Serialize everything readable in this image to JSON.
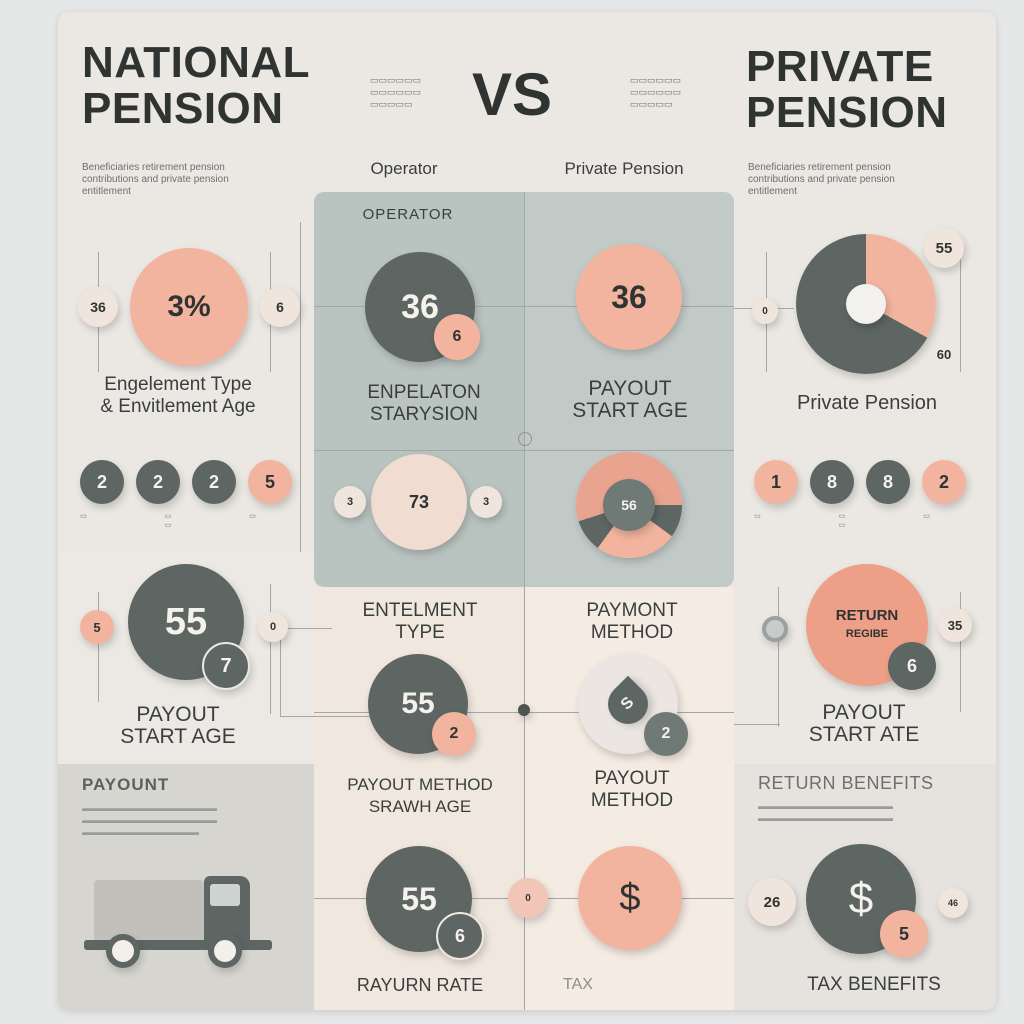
{
  "header": {
    "left_title": [
      "NATIONAL",
      "PENSION"
    ],
    "vs": "VS",
    "right_title": [
      "PRIVATE",
      "PENSION"
    ],
    "left_sub": [
      "Beneficiaries retirement pension",
      "contributions and private pension",
      "entitlement"
    ],
    "right_sub": [
      "Beneficiaries retirement pension",
      "contributions and private pension",
      "entitlement"
    ],
    "col_operator": "Operator",
    "col_private": "Private Pension"
  },
  "left_top": {
    "big_value": "3%",
    "side_left": "36",
    "side_right": "6",
    "label": [
      "Engelement Type",
      "& Envitlement Age"
    ],
    "row": [
      "2",
      "2",
      "2",
      "5"
    ]
  },
  "center_top": {
    "heading": "OPERATOR",
    "left_big": "36",
    "left_badge": "6",
    "left_label": [
      "ENPELATON",
      "STARYSION"
    ],
    "right_big": "36",
    "right_label": [
      "PAYOUT",
      "START AGE"
    ],
    "wheel_left": "73",
    "wheel_left_l": "3",
    "wheel_left_r": "3",
    "wheel_right": "56"
  },
  "right_top": {
    "badge": "55",
    "badge_bottom": "60",
    "label": "Private Pension",
    "row": [
      "1",
      "8",
      "8",
      "2"
    ]
  },
  "left_mid": {
    "big": "55",
    "badge": "7",
    "side": "5",
    "label": [
      "PAYOUT",
      "START AGE"
    ]
  },
  "center_mid": {
    "left_label": [
      "ENTELMENT",
      "TYPE"
    ],
    "right_label": [
      "PAYMONT",
      "METHOD"
    ],
    "left_big": "55",
    "left_badge": "2",
    "right_big": "S",
    "right_badge": "2",
    "left_label2": [
      "PAYOUT METHOD",
      "SRAWH AGE"
    ],
    "right_label2": [
      "PAYOUT",
      "METHOD"
    ]
  },
  "right_mid": {
    "big": [
      "RETURN",
      "REGIBE"
    ],
    "badge": "6",
    "side": "35",
    "label": [
      "PAYOUT",
      "START ATE"
    ]
  },
  "left_bottom": {
    "heading": "PAYOUNT"
  },
  "center_bottom": {
    "left_big": "55",
    "left_badge": "6",
    "left_label": "RAYURN RATE",
    "right_big": "$",
    "right_label": "TAX"
  },
  "right_bottom": {
    "heading": "RETURN BENEFITS",
    "side": "26",
    "big": "$",
    "badge": "5",
    "label": "TAX BENEFITS"
  },
  "colors": {
    "peach": "#f2b49f",
    "dark": "#5d6663",
    "teal": "#b9c3c0",
    "cream": "#f0e7de"
  }
}
